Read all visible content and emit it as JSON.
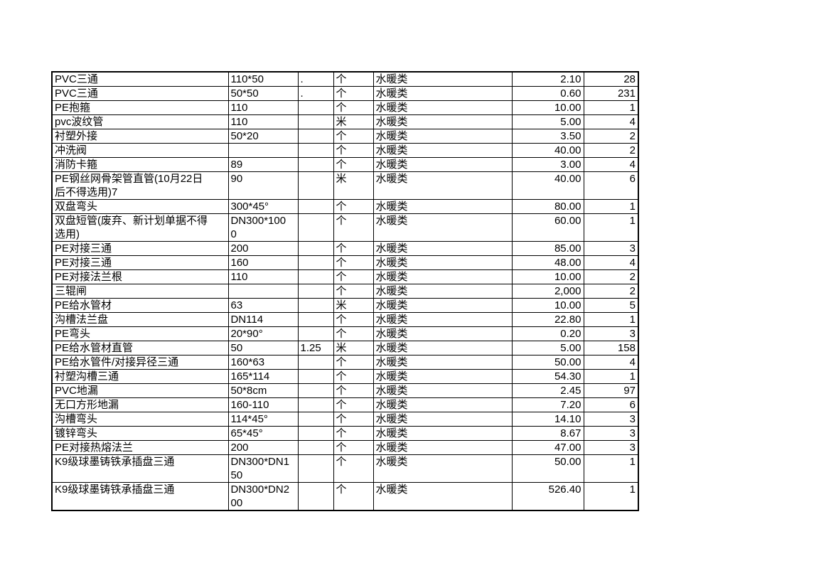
{
  "page": {
    "background_color": "#ffffff",
    "text_color": "#000000",
    "grid_color": "#000000"
  },
  "table": {
    "rows": [
      {
        "name": "PVC三通",
        "spec": "110*50",
        "factor": ".",
        "unit": "个",
        "category": "水暖类",
        "price": "2.10",
        "qty": "28"
      },
      {
        "name": "PVC三通",
        "spec": "50*50",
        "factor": ".",
        "unit": "个",
        "category": "水暖类",
        "price": "0.60",
        "qty": "231"
      },
      {
        "name": "PE抱箍",
        "spec": "110",
        "factor": "",
        "unit": "个",
        "category": "水暖类",
        "price": "10.00",
        "qty": "1"
      },
      {
        "name": "pvc波纹管",
        "spec": "110",
        "factor": "",
        "unit": "米",
        "category": "水暖类",
        "price": "5.00",
        "qty": "4"
      },
      {
        "name": "衬塑外接",
        "spec": "50*20",
        "factor": "",
        "unit": "个",
        "category": "水暖类",
        "price": "3.50",
        "qty": "2"
      },
      {
        "name": "冲洗阀",
        "spec": "",
        "factor": "",
        "unit": "个",
        "category": "水暖类",
        "price": "40.00",
        "qty": "2"
      },
      {
        "name": "消防卡箍",
        "spec": "89",
        "factor": "",
        "unit": "个",
        "category": "水暖类",
        "price": "3.00",
        "qty": "4"
      },
      {
        "name": "PE钢丝网骨架管直管(10月22日\n后不得选用)7",
        "spec": "90",
        "factor": "",
        "unit": "米",
        "category": "水暖类",
        "price": "40.00",
        "qty": "6"
      },
      {
        "name": "双盘弯头",
        "spec": "300*45°",
        "factor": "",
        "unit": "个",
        "category": "水暖类",
        "price": "80.00",
        "qty": "1"
      },
      {
        "name": "双盘短管(废弃、新计划单据不得\n选用)",
        "spec": "DN300*100\n0",
        "factor": "",
        "unit": "个",
        "category": "水暖类",
        "price": "60.00",
        "qty": "1"
      },
      {
        "name": "PE对接三通",
        "spec": "200",
        "factor": "",
        "unit": "个",
        "category": "水暖类",
        "price": "85.00",
        "qty": "3"
      },
      {
        "name": "PE对接三通",
        "spec": "160",
        "factor": "",
        "unit": "个",
        "category": "水暖类",
        "price": "48.00",
        "qty": "4"
      },
      {
        "name": "PE对接法兰根",
        "spec": "110",
        "factor": "",
        "unit": "个",
        "category": "水暖类",
        "price": "10.00",
        "qty": "2"
      },
      {
        "name": "三辊闸",
        "spec": "",
        "factor": "",
        "unit": "个",
        "category": "水暖类",
        "price": "2,000",
        "qty": "2"
      },
      {
        "name": "PE给水管材",
        "spec": "63",
        "factor": "",
        "unit": "米",
        "category": "水暖类",
        "price": "10.00",
        "qty": "5"
      },
      {
        "name": "沟槽法兰盘",
        "spec": "DN114",
        "factor": "",
        "unit": "个",
        "category": "水暖类",
        "price": "22.80",
        "qty": "1"
      },
      {
        "name": "PE弯头",
        "spec": "20*90°",
        "factor": "",
        "unit": "个",
        "category": "水暖类",
        "price": "0.20",
        "qty": "3"
      },
      {
        "name": "PE给水管材直管",
        "spec": "50",
        "factor": "1.25",
        "unit": "米",
        "category": "水暖类",
        "price": "5.00",
        "qty": "158"
      },
      {
        "name": "PE给水管件/对接异径三通",
        "spec": "160*63",
        "factor": "",
        "unit": "个",
        "category": "水暖类",
        "price": "50.00",
        "qty": "4"
      },
      {
        "name": "衬塑沟槽三通",
        "spec": "165*114",
        "factor": "",
        "unit": "个",
        "category": "水暖类",
        "price": "54.30",
        "qty": "1"
      },
      {
        "name": "PVC地漏",
        "spec": "50*8cm",
        "factor": "",
        "unit": "个",
        "category": "水暖类",
        "price": "2.45",
        "qty": "97"
      },
      {
        "name": "无口方形地漏",
        "spec": "160-110",
        "factor": "",
        "unit": "个",
        "category": "水暖类",
        "price": "7.20",
        "qty": "6"
      },
      {
        "name": "沟槽弯头",
        "spec": "114*45°",
        "factor": "",
        "unit": "个",
        "category": "水暖类",
        "price": "14.10",
        "qty": "3"
      },
      {
        "name": "镀锌弯头",
        "spec": "65*45°",
        "factor": "",
        "unit": "个",
        "category": "水暖类",
        "price": "8.67",
        "qty": "3"
      },
      {
        "name": "PE对接热熔法兰",
        "spec": "200",
        "factor": "",
        "unit": "个",
        "category": "水暖类",
        "price": "47.00",
        "qty": "3"
      },
      {
        "name": "K9级球墨铸铁承插盘三通",
        "spec": "DN300*DN1\n50",
        "factor": "",
        "unit": "个",
        "category": "水暖类",
        "price": "50.00",
        "qty": "1"
      },
      {
        "name": "K9级球墨铸铁承插盘三通",
        "spec": "DN300*DN2\n00",
        "factor": "",
        "unit": "个",
        "category": "水暖类",
        "price": "526.40",
        "qty": "1"
      }
    ]
  }
}
